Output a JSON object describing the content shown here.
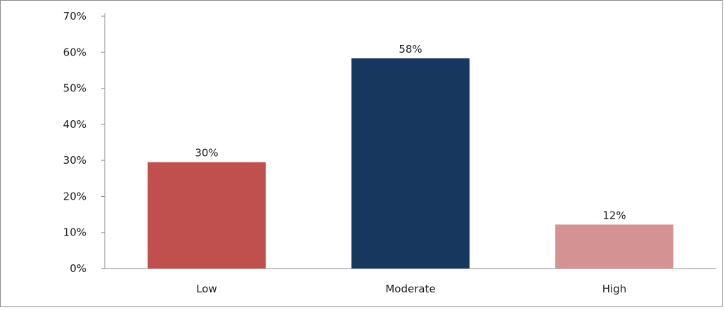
{
  "chart_data": {
    "type": "bar",
    "categories": [
      "Low",
      "Moderate",
      "High"
    ],
    "values": [
      29.5,
      58.3,
      12.2
    ],
    "data_labels": [
      "30%",
      "58%",
      "12%"
    ],
    "colors": [
      "#c0504d",
      "#17375e",
      "#d49292"
    ],
    "ylim": [
      0,
      70
    ],
    "y_ticks": [
      0,
      10,
      20,
      30,
      40,
      50,
      60,
      70
    ],
    "y_tick_labels": [
      "0%",
      "10%",
      "20%",
      "30%",
      "40%",
      "50%",
      "60%",
      "70%"
    ],
    "title": "",
    "xlabel": "",
    "ylabel": "",
    "grid": false,
    "legend": "none"
  }
}
